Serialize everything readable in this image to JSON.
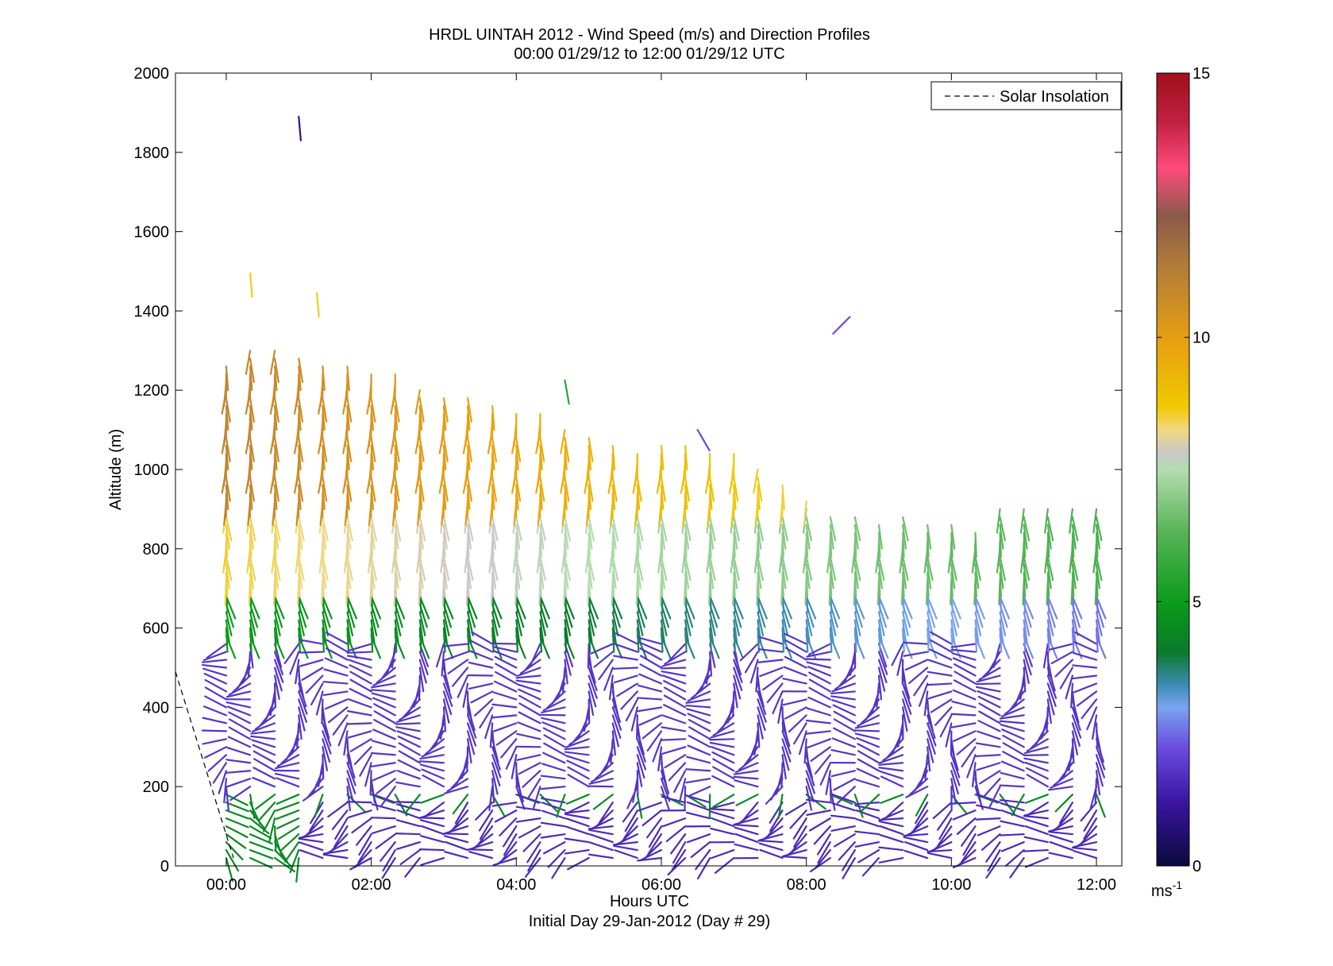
{
  "chart_data": {
    "type": "quiver",
    "title": "HRDL UINTAH 2012 - Wind Speed (m/s) and Direction Profiles",
    "subtitle": "00:00 01/29/12 to 12:00 01/29/12  UTC",
    "xlabel": "Hours UTC",
    "xlabel2": "Initial Day 29-Jan-2012 (Day # 29)",
    "ylabel": "Altitude (m)",
    "xlim": [
      -0.7,
      12.35
    ],
    "ylim": [
      0,
      2000
    ],
    "x_ticks": [
      0,
      2,
      4,
      6,
      8,
      10,
      12
    ],
    "x_tick_labels": [
      "00:00",
      "02:00",
      "04:00",
      "06:00",
      "08:00",
      "10:00",
      "12:00"
    ],
    "y_ticks": [
      0,
      200,
      400,
      600,
      800,
      1000,
      1200,
      1400,
      1600,
      1800,
      2000
    ],
    "y_tick_labels": [
      "0",
      "200",
      "400",
      "600",
      "800",
      "1000",
      "1200",
      "1400",
      "1600",
      "1800",
      "2000"
    ],
    "legend": {
      "position": "top-right",
      "entries": [
        {
          "name": "Solar Insolation",
          "style": "dashed",
          "color": "#000000"
        }
      ]
    },
    "colorbar": {
      "range": [
        0,
        15
      ],
      "ticks": [
        0,
        5,
        10,
        15
      ],
      "tick_labels": [
        "0",
        "5",
        "10",
        "15"
      ],
      "unit_base": "ms",
      "unit_exp": "-1",
      "colors": [
        "#0a0a3c",
        "#3a14a0",
        "#6a4ee0",
        "#7aa4f0",
        "#3a8ab0",
        "#0a7a2a",
        "#0a9a1a",
        "#56b456",
        "#b4dcb0",
        "#c8c8c8",
        "#f0d880",
        "#f0c800",
        "#e8a010",
        "#b07a3a",
        "#8a5a4a",
        "#ff4a7a",
        "#c02040",
        "#a0101a"
      ],
      "stops": [
        0,
        0.08,
        0.15,
        0.2,
        0.23,
        0.27,
        0.33,
        0.42,
        0.5,
        0.52,
        0.55,
        0.58,
        0.66,
        0.76,
        0.82,
        0.88,
        0.94,
        1.0
      ]
    },
    "solar_insolation": [
      {
        "x": -0.7,
        "y": 490
      },
      {
        "x": 0.1,
        "y": 20
      }
    ],
    "profile_times": [
      0.0,
      0.33,
      0.67,
      1.0,
      1.33,
      1.67,
      2.0,
      2.33,
      2.67,
      3.0,
      3.33,
      3.67,
      4.0,
      4.33,
      4.67,
      5.0,
      5.33,
      5.67,
      6.0,
      6.33,
      6.67,
      7.0,
      7.33,
      7.67,
      8.0,
      8.33,
      8.67,
      9.0,
      9.33,
      9.67,
      10.0,
      10.33,
      10.67,
      11.0,
      11.33,
      11.67,
      12.0
    ],
    "profile_tops": [
      1270,
      1300,
      1300,
      1280,
      1270,
      1260,
      1250,
      1240,
      1210,
      1190,
      1180,
      1160,
      1150,
      1140,
      1100,
      1090,
      1060,
      1050,
      1070,
      1060,
      1050,
      1040,
      1000,
      960,
      920,
      890,
      880,
      870,
      880,
      870,
      860,
      850,
      910,
      900,
      910,
      910,
      900
    ],
    "altitude_step_m": 20,
    "profile_segments_note": "",
    "low_levels": [
      {
        "top": 180,
        "speed": 4.5,
        "dir": 270
      },
      {
        "top": 560,
        "speed": 1.8,
        "dir": 220
      },
      {
        "top": 700,
        "speed": 5.0,
        "dir": 285
      },
      {
        "top": 900,
        "speed": 8.5,
        "dir": 275
      },
      {
        "top": 1300,
        "speed": 11.0,
        "dir": 272
      }
    ],
    "isolated_vectors": [
      {
        "x": 1.0,
        "y": 1890,
        "speed": 1.0,
        "dir": 275
      },
      {
        "x": 1.25,
        "y": 1445,
        "speed": 8.6,
        "dir": 275
      },
      {
        "x": 0.33,
        "y": 1495,
        "speed": 8.6,
        "dir": 275
      },
      {
        "x": 8.6,
        "y": 1385,
        "speed": 2.2,
        "dir": 225
      },
      {
        "x": 4.67,
        "y": 1225,
        "speed": 5.5,
        "dir": 280
      },
      {
        "x": 6.5,
        "y": 1100,
        "speed": 2.2,
        "dir": 300
      }
    ]
  }
}
